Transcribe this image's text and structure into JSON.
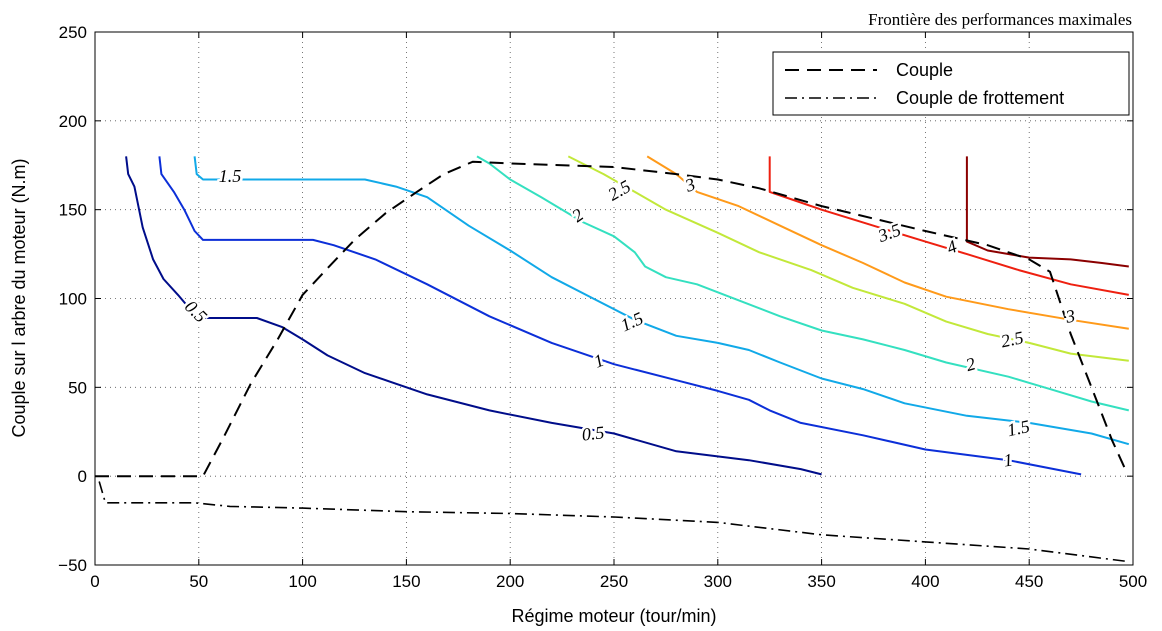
{
  "chart_data": {
    "type": "line",
    "title": "",
    "annotation": "Frontière des performances maximales",
    "xlabel": "Régime moteur (tour/min)",
    "ylabel": "Couple sur l arbre du moteur (N.m)",
    "xlim": [
      0,
      500
    ],
    "ylim": [
      -50,
      250
    ],
    "xticks": [
      0,
      50,
      100,
      150,
      200,
      250,
      300,
      350,
      400,
      450,
      500
    ],
    "yticks": [
      -50,
      0,
      50,
      100,
      150,
      200,
      250
    ],
    "grid": true,
    "legend_position": "top-right",
    "legend": [
      {
        "label": "Couple",
        "style": "dashed"
      },
      {
        "label": "Couple de frottement",
        "style": "dashdot"
      }
    ],
    "series": [
      {
        "name": "Couple",
        "style": "dashed",
        "color": "#000000",
        "points": [
          [
            0,
            0
          ],
          [
            52,
            0
          ],
          [
            62,
            22
          ],
          [
            75,
            52
          ],
          [
            88,
            77
          ],
          [
            100,
            102
          ],
          [
            112,
            117
          ],
          [
            125,
            133
          ],
          [
            140,
            148
          ],
          [
            155,
            160
          ],
          [
            168,
            170
          ],
          [
            182,
            177
          ],
          [
            200,
            176
          ],
          [
            250,
            174
          ],
          [
            280,
            170
          ],
          [
            300,
            167
          ],
          [
            320,
            162
          ],
          [
            350,
            152
          ],
          [
            400,
            138
          ],
          [
            430,
            130
          ],
          [
            450,
            122
          ],
          [
            460,
            115
          ],
          [
            470,
            80
          ],
          [
            480,
            50
          ],
          [
            490,
            20
          ],
          [
            497,
            2
          ]
        ]
      },
      {
        "name": "Couple de frottement",
        "style": "dashdot",
        "color": "#000000",
        "points": [
          [
            2,
            -3
          ],
          [
            5,
            -15
          ],
          [
            48,
            -15
          ],
          [
            65,
            -17
          ],
          [
            100,
            -18
          ],
          [
            150,
            -20
          ],
          [
            200,
            -21
          ],
          [
            250,
            -23
          ],
          [
            300,
            -26
          ],
          [
            350,
            -33
          ],
          [
            400,
            -37
          ],
          [
            450,
            -41
          ],
          [
            497,
            -48
          ]
        ]
      }
    ],
    "contours": [
      {
        "level": "0.5",
        "color": "#000d8a",
        "points": [
          [
            15,
            180
          ],
          [
            16,
            170
          ],
          [
            19,
            163
          ],
          [
            23,
            140
          ],
          [
            28,
            122
          ],
          [
            33,
            111
          ],
          [
            40,
            102
          ],
          [
            48,
            91
          ],
          [
            53,
            89
          ],
          [
            78,
            89
          ],
          [
            90,
            84
          ],
          [
            100,
            77
          ],
          [
            112,
            68
          ],
          [
            130,
            58
          ],
          [
            160,
            46
          ],
          [
            190,
            37
          ],
          [
            220,
            30
          ],
          [
            250,
            24
          ],
          [
            280,
            14
          ],
          [
            315,
            9
          ],
          [
            340,
            4
          ],
          [
            350,
            1
          ]
        ],
        "labels": [
          {
            "x": 48,
            "y": 92,
            "rot": 45
          },
          {
            "x": 240,
            "y": 23,
            "rot": -6
          }
        ]
      },
      {
        "level": "1",
        "color": "#0c2fd8",
        "points": [
          [
            31,
            180
          ],
          [
            32,
            170
          ],
          [
            38,
            160
          ],
          [
            43,
            150
          ],
          [
            48,
            138
          ],
          [
            52,
            133
          ],
          [
            105,
            133
          ],
          [
            115,
            130
          ],
          [
            135,
            122
          ],
          [
            160,
            108
          ],
          [
            190,
            90
          ],
          [
            220,
            75
          ],
          [
            250,
            63
          ],
          [
            280,
            54
          ],
          [
            300,
            48
          ],
          [
            315,
            43
          ],
          [
            325,
            37
          ],
          [
            340,
            30
          ],
          [
            370,
            23
          ],
          [
            400,
            15
          ],
          [
            440,
            9
          ],
          [
            475,
            1
          ]
        ],
        "labels": [
          {
            "x": 243,
            "y": 64,
            "rot": -22
          },
          {
            "x": 440,
            "y": 8,
            "rot": -8
          }
        ]
      },
      {
        "level": "1.5",
        "color": "#11a9e8",
        "points": [
          [
            48,
            180
          ],
          [
            49,
            170
          ],
          [
            52,
            167
          ],
          [
            62,
            167
          ],
          [
            130,
            167
          ],
          [
            145,
            163
          ],
          [
            160,
            157
          ],
          [
            180,
            141
          ],
          [
            200,
            127
          ],
          [
            220,
            112
          ],
          [
            240,
            100
          ],
          [
            260,
            88
          ],
          [
            280,
            79
          ],
          [
            300,
            75
          ],
          [
            315,
            71
          ],
          [
            330,
            64
          ],
          [
            350,
            55
          ],
          [
            370,
            49
          ],
          [
            390,
            41
          ],
          [
            420,
            34
          ],
          [
            450,
            30
          ],
          [
            480,
            24
          ],
          [
            498,
            18
          ]
        ],
        "labels": [
          {
            "x": 65,
            "y": 168,
            "rot": 0
          },
          {
            "x": 259,
            "y": 86,
            "rot": -24
          },
          {
            "x": 445,
            "y": 26,
            "rot": -12
          }
        ]
      },
      {
        "level": "2",
        "color": "#34e0c0",
        "points": [
          [
            184,
            180
          ],
          [
            190,
            176
          ],
          [
            200,
            167
          ],
          [
            215,
            157
          ],
          [
            235,
            143
          ],
          [
            250,
            135
          ],
          [
            260,
            126
          ],
          [
            265,
            118
          ],
          [
            275,
            112
          ],
          [
            290,
            108
          ],
          [
            310,
            99
          ],
          [
            330,
            90
          ],
          [
            350,
            82
          ],
          [
            370,
            77
          ],
          [
            390,
            71
          ],
          [
            410,
            64
          ],
          [
            440,
            56
          ],
          [
            460,
            49
          ],
          [
            480,
            42
          ],
          [
            498,
            37
          ]
        ],
        "labels": [
          {
            "x": 233,
            "y": 146,
            "rot": -35
          },
          {
            "x": 422,
            "y": 62,
            "rot": -16
          }
        ]
      },
      {
        "level": "2.5",
        "color": "#c2e83a",
        "points": [
          [
            228,
            180
          ],
          [
            245,
            170
          ],
          [
            260,
            160
          ],
          [
            275,
            150
          ],
          [
            300,
            137
          ],
          [
            320,
            126
          ],
          [
            345,
            116
          ],
          [
            365,
            106
          ],
          [
            390,
            97
          ],
          [
            410,
            87
          ],
          [
            430,
            80
          ],
          [
            450,
            75
          ],
          [
            470,
            69
          ],
          [
            498,
            65
          ]
        ],
        "labels": [
          {
            "x": 253,
            "y": 160,
            "rot": -30
          },
          {
            "x": 442,
            "y": 76,
            "rot": -12
          }
        ]
      },
      {
        "level": "3",
        "color": "#ff9a1a",
        "points": [
          [
            266,
            180
          ],
          [
            280,
            170
          ],
          [
            290,
            160
          ],
          [
            310,
            152
          ],
          [
            330,
            141
          ],
          [
            350,
            130
          ],
          [
            370,
            120
          ],
          [
            390,
            109
          ],
          [
            410,
            101
          ],
          [
            440,
            94
          ],
          [
            470,
            88
          ],
          [
            498,
            83
          ]
        ],
        "labels": [
          {
            "x": 287,
            "y": 163,
            "rot": -20
          },
          {
            "x": 470,
            "y": 89,
            "rot": -10
          }
        ]
      },
      {
        "level": "3.5",
        "color": "#ee2010",
        "points": [
          [
            325,
            180
          ],
          [
            325,
            160
          ],
          [
            335,
            156
          ],
          [
            350,
            150
          ],
          [
            375,
            141
          ],
          [
            400,
            132
          ],
          [
            420,
            125
          ],
          [
            445,
            116
          ],
          [
            470,
            108
          ],
          [
            498,
            102
          ]
        ],
        "labels": [
          {
            "x": 383,
            "y": 136,
            "rot": -20
          }
        ]
      },
      {
        "level": "4",
        "color": "#8b0000",
        "points": [
          [
            420,
            180
          ],
          [
            420,
            132
          ],
          [
            430,
            127
          ],
          [
            450,
            123
          ],
          [
            470,
            122
          ],
          [
            485,
            120
          ],
          [
            498,
            118
          ]
        ],
        "labels": [
          {
            "x": 413,
            "y": 128,
            "rot": -22
          }
        ]
      }
    ]
  }
}
